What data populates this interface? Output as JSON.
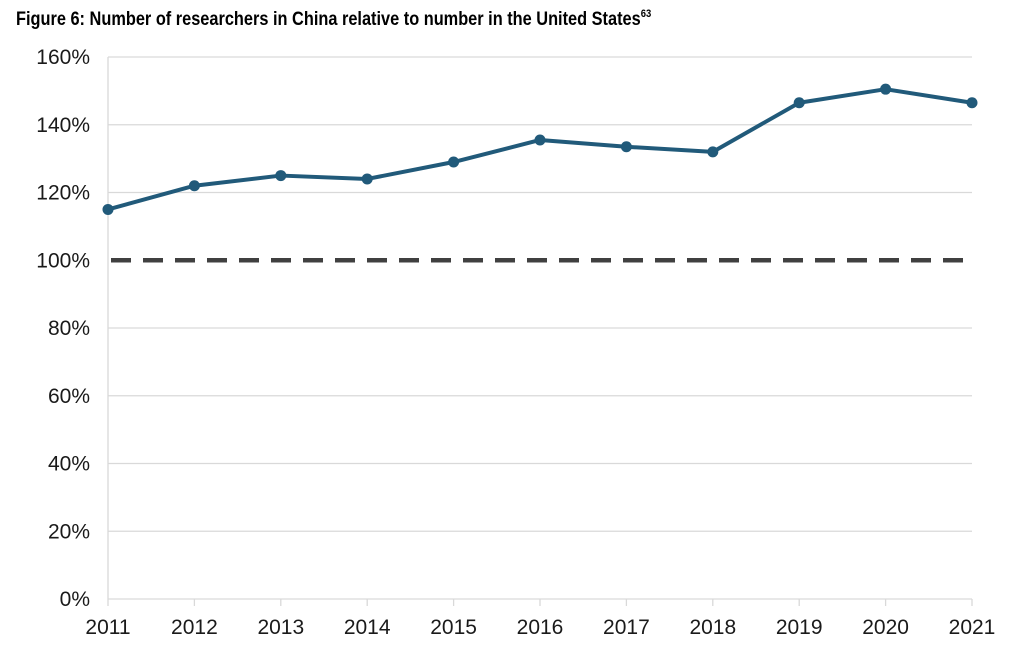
{
  "title": {
    "text": "Figure 6: Number of researchers in China relative to number in the United States",
    "footnote": "63"
  },
  "chart_data": {
    "type": "line",
    "title": "Figure 6: Number of researchers in China relative to number in the United States",
    "xlabel": "",
    "ylabel": "",
    "x": [
      2011,
      2012,
      2013,
      2014,
      2015,
      2016,
      2017,
      2018,
      2019,
      2020,
      2021
    ],
    "series": [
      {
        "values": [
          115,
          122,
          125,
          124,
          129,
          135.5,
          133.5,
          132,
          146.5,
          150.5,
          146.5
        ]
      }
    ],
    "reference_line": {
      "value": 100,
      "style": "dashed"
    },
    "ylim": [
      0,
      160
    ],
    "y_ticks": [
      0,
      20,
      40,
      60,
      80,
      100,
      120,
      140,
      160
    ],
    "y_tick_labels": [
      "0%",
      "20%",
      "40%",
      "60%",
      "80%",
      "100%",
      "120%",
      "140%",
      "160%"
    ],
    "x_tick_labels": [
      "2011",
      "2012",
      "2013",
      "2014",
      "2015",
      "2016",
      "2017",
      "2018",
      "2019",
      "2020",
      "2021"
    ],
    "grid": "horizontal",
    "legend": "none",
    "colors": {
      "line": "#215a7a",
      "reference": "#404040",
      "grid": "#d9d9d9"
    }
  }
}
